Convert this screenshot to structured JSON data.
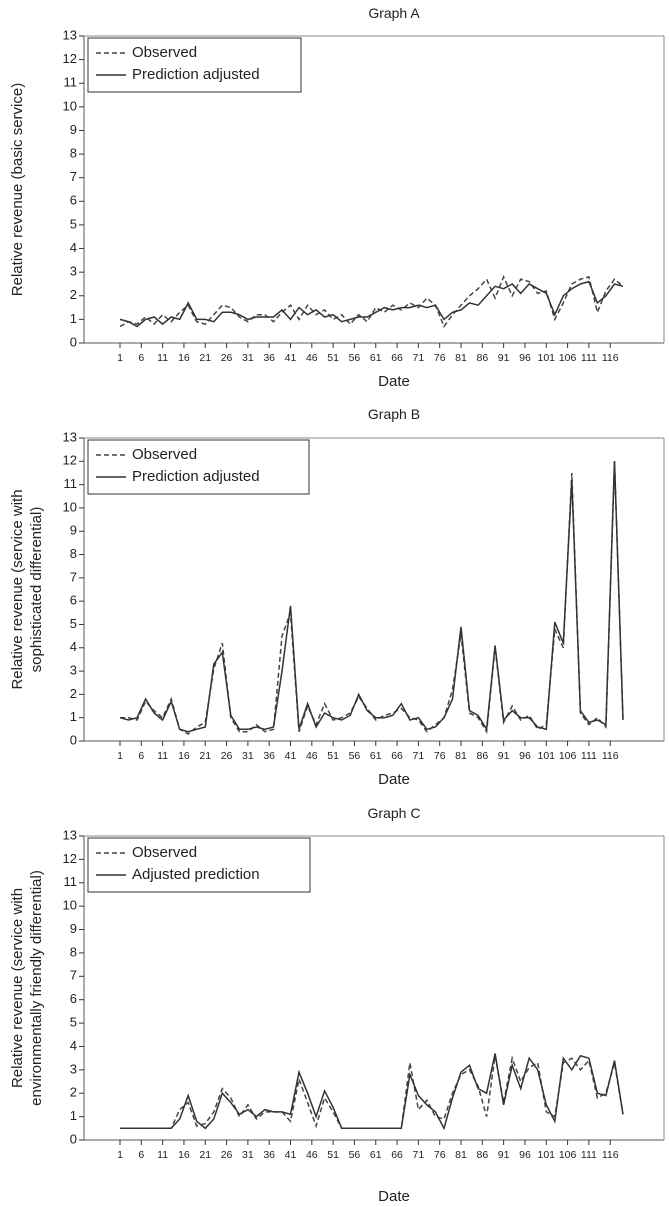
{
  "chart_data": [
    {
      "type": "line",
      "title": "Graph A",
      "xlabel": "Date",
      "ylabel": "Relative revenue (basic service)",
      "ylim": [
        0,
        13
      ],
      "yticks": [
        "0",
        "1",
        "2",
        "3",
        "4",
        "5",
        "6",
        "7",
        "8",
        "9",
        "10",
        "11",
        "12",
        "13"
      ],
      "xticks": [
        "1",
        "6",
        "11",
        "16",
        "21",
        "26",
        "31",
        "36",
        "41",
        "46",
        "51",
        "56",
        "61",
        "66",
        "71",
        "76",
        "81",
        "86",
        "91",
        "96",
        "101",
        "106",
        "111",
        "116"
      ],
      "legend_position": "top-left",
      "series": [
        {
          "name": "Observed",
          "style": "dashed",
          "x": [
            1,
            3,
            5,
            7,
            9,
            11,
            13,
            15,
            17,
            19,
            21,
            23,
            25,
            27,
            29,
            31,
            33,
            35,
            37,
            39,
            41,
            43,
            45,
            47,
            49,
            51,
            53,
            55,
            57,
            59,
            61,
            63,
            65,
            67,
            69,
            71,
            73,
            75,
            77,
            79,
            81,
            83,
            85,
            87,
            89,
            91,
            93,
            95,
            97,
            99,
            101,
            103,
            105,
            107,
            109,
            111,
            113,
            115,
            117,
            119
          ],
          "values": [
            0.7,
            0.9,
            0.8,
            1.1,
            0.8,
            1.2,
            0.9,
            1.3,
            1.6,
            0.9,
            0.8,
            1.2,
            1.6,
            1.5,
            1.1,
            0.9,
            1.2,
            1.2,
            0.9,
            1.3,
            1.6,
            1.0,
            1.6,
            1.2,
            1.4,
            1.0,
            1.2,
            0.8,
            1.2,
            0.9,
            1.5,
            1.3,
            1.6,
            1.4,
            1.7,
            1.5,
            1.9,
            1.6,
            0.7,
            1.2,
            1.6,
            2.0,
            2.3,
            2.7,
            1.9,
            2.8,
            2.0,
            2.7,
            2.6,
            2.1,
            2.2,
            1.0,
            1.7,
            2.5,
            2.7,
            2.8,
            1.3,
            2.2,
            2.7,
            2.4
          ]
        },
        {
          "name": "Prediction adjusted",
          "style": "solid",
          "x": [
            1,
            3,
            5,
            7,
            9,
            11,
            13,
            15,
            17,
            19,
            21,
            23,
            25,
            27,
            29,
            31,
            33,
            35,
            37,
            39,
            41,
            43,
            45,
            47,
            49,
            51,
            53,
            55,
            57,
            59,
            61,
            63,
            65,
            67,
            69,
            71,
            73,
            75,
            77,
            79,
            81,
            83,
            85,
            87,
            89,
            91,
            93,
            95,
            97,
            99,
            101,
            103,
            105,
            107,
            109,
            111,
            113,
            115,
            117,
            119
          ],
          "values": [
            1.0,
            0.9,
            0.7,
            1.0,
            1.1,
            0.8,
            1.1,
            1.0,
            1.7,
            1.0,
            1.0,
            0.9,
            1.3,
            1.3,
            1.2,
            1.0,
            1.1,
            1.1,
            1.1,
            1.4,
            1.0,
            1.5,
            1.2,
            1.4,
            1.1,
            1.2,
            0.9,
            1.0,
            1.1,
            1.1,
            1.3,
            1.5,
            1.4,
            1.5,
            1.5,
            1.6,
            1.5,
            1.6,
            1.0,
            1.3,
            1.4,
            1.7,
            1.6,
            2.0,
            2.4,
            2.3,
            2.5,
            2.1,
            2.5,
            2.3,
            2.1,
            1.2,
            2.0,
            2.3,
            2.5,
            2.6,
            1.7,
            2.0,
            2.5,
            2.4
          ]
        }
      ]
    },
    {
      "type": "line",
      "title": "Graph B",
      "xlabel": "Date",
      "ylabel": "Relative revenue (service with sophisticated differential)",
      "ylim": [
        0,
        13
      ],
      "yticks": [
        "0",
        "1",
        "2",
        "3",
        "4",
        "5",
        "6",
        "7",
        "8",
        "9",
        "10",
        "11",
        "12",
        "13"
      ],
      "xticks": [
        "1",
        "6",
        "11",
        "16",
        "21",
        "26",
        "31",
        "36",
        "41",
        "46",
        "51",
        "56",
        "61",
        "66",
        "71",
        "76",
        "81",
        "86",
        "91",
        "96",
        "101",
        "106",
        "111",
        "116"
      ],
      "legend_position": "top-left",
      "series": [
        {
          "name": "Observed",
          "style": "dashed",
          "x": [
            1,
            3,
            5,
            7,
            9,
            11,
            13,
            15,
            17,
            19,
            21,
            23,
            25,
            27,
            29,
            31,
            33,
            35,
            37,
            39,
            41,
            43,
            45,
            47,
            49,
            51,
            53,
            55,
            57,
            59,
            61,
            63,
            65,
            67,
            69,
            71,
            73,
            75,
            77,
            79,
            81,
            83,
            85,
            87,
            89,
            91,
            93,
            95,
            97,
            99,
            101,
            103,
            105,
            107,
            109,
            111,
            113,
            115,
            117,
            119
          ],
          "values": [
            1.0,
            1.0,
            0.9,
            1.7,
            1.3,
            1.0,
            1.8,
            0.5,
            0.3,
            0.6,
            0.8,
            3.1,
            4.2,
            1.0,
            0.4,
            0.4,
            0.7,
            0.4,
            0.5,
            4.5,
            5.5,
            0.4,
            1.5,
            0.7,
            1.6,
            0.9,
            1.0,
            1.2,
            1.9,
            1.4,
            0.9,
            1.1,
            1.2,
            1.4,
            1.0,
            0.9,
            0.4,
            0.7,
            1.0,
            2.2,
            4.6,
            1.2,
            1.0,
            0.4,
            4.0,
            0.8,
            1.5,
            0.9,
            1.1,
            0.5,
            0.7,
            4.8,
            4.0,
            11.5,
            1.2,
            0.7,
            1.0,
            0.6,
            12.0,
            0.9
          ]
        },
        {
          "name": "Prediction adjusted",
          "style": "solid",
          "x": [
            1,
            3,
            5,
            7,
            9,
            11,
            13,
            15,
            17,
            19,
            21,
            23,
            25,
            27,
            29,
            31,
            33,
            35,
            37,
            39,
            41,
            43,
            45,
            47,
            49,
            51,
            53,
            55,
            57,
            59,
            61,
            63,
            65,
            67,
            69,
            71,
            73,
            75,
            77,
            79,
            81,
            83,
            85,
            87,
            89,
            91,
            93,
            95,
            97,
            99,
            101,
            103,
            105,
            107,
            109,
            111,
            113,
            115,
            117,
            119
          ],
          "values": [
            1.0,
            0.9,
            1.0,
            1.8,
            1.2,
            0.9,
            1.7,
            0.5,
            0.4,
            0.5,
            0.6,
            3.3,
            3.8,
            1.1,
            0.5,
            0.5,
            0.6,
            0.5,
            0.6,
            3.0,
            5.8,
            0.5,
            1.6,
            0.6,
            1.2,
            1.0,
            0.9,
            1.1,
            2.0,
            1.3,
            1.0,
            1.0,
            1.1,
            1.6,
            0.9,
            1.0,
            0.5,
            0.6,
            1.0,
            1.8,
            4.9,
            1.3,
            1.1,
            0.5,
            4.1,
            0.9,
            1.3,
            1.0,
            1.0,
            0.6,
            0.5,
            5.1,
            4.2,
            11.2,
            1.3,
            0.8,
            0.9,
            0.7,
            12.0,
            0.9
          ]
        }
      ]
    },
    {
      "type": "line",
      "title": "Graph C",
      "xlabel": "Date",
      "ylabel": "Relative revenue (service with environmentally friendly differential)",
      "ylim": [
        0,
        13
      ],
      "yticks": [
        "0",
        "1",
        "2",
        "3",
        "4",
        "5",
        "6",
        "7",
        "8",
        "9",
        "10",
        "11",
        "12",
        "13"
      ],
      "xticks": [
        "1",
        "6",
        "11",
        "16",
        "21",
        "26",
        "31",
        "36",
        "41",
        "46",
        "51",
        "56",
        "61",
        "66",
        "71",
        "76",
        "81",
        "86",
        "91",
        "96",
        "101",
        "106",
        "111",
        "116"
      ],
      "legend_position": "top-left",
      "series": [
        {
          "name": "Observed",
          "style": "dashed",
          "x": [
            1,
            3,
            5,
            7,
            9,
            11,
            13,
            15,
            17,
            19,
            21,
            23,
            25,
            27,
            29,
            31,
            33,
            35,
            37,
            39,
            41,
            43,
            45,
            47,
            49,
            51,
            53,
            55,
            57,
            59,
            61,
            63,
            65,
            67,
            69,
            71,
            73,
            75,
            77,
            79,
            81,
            83,
            85,
            87,
            89,
            91,
            93,
            95,
            97,
            99,
            101,
            103,
            105,
            107,
            109,
            111,
            113,
            115,
            117,
            119
          ],
          "values": [
            0.5,
            0.5,
            0.5,
            0.5,
            0.5,
            0.5,
            0.5,
            1.3,
            1.6,
            0.6,
            0.7,
            1.2,
            2.2,
            1.8,
            1.0,
            1.5,
            0.9,
            1.2,
            1.2,
            1.2,
            0.8,
            2.6,
            1.6,
            0.6,
            1.8,
            1.2,
            0.5,
            0.5,
            0.5,
            0.5,
            0.5,
            0.5,
            0.5,
            0.5,
            3.3,
            1.3,
            1.7,
            1.0,
            0.9,
            2.0,
            2.8,
            3.0,
            2.3,
            1.0,
            3.6,
            1.6,
            3.5,
            2.5,
            3.1,
            3.3,
            1.2,
            1.0,
            3.3,
            3.5,
            3.0,
            3.4,
            1.8,
            2.0,
            3.3,
            1.1
          ]
        },
        {
          "name": "Adjusted prediction",
          "style": "solid",
          "x": [
            1,
            3,
            5,
            7,
            9,
            11,
            13,
            15,
            17,
            19,
            21,
            23,
            25,
            27,
            29,
            31,
            33,
            35,
            37,
            39,
            41,
            43,
            45,
            47,
            49,
            51,
            53,
            55,
            57,
            59,
            61,
            63,
            65,
            67,
            69,
            71,
            73,
            75,
            77,
            79,
            81,
            83,
            85,
            87,
            89,
            91,
            93,
            95,
            97,
            99,
            101,
            103,
            105,
            107,
            109,
            111,
            113,
            115,
            117,
            119
          ],
          "values": [
            0.5,
            0.5,
            0.5,
            0.5,
            0.5,
            0.5,
            0.5,
            0.9,
            1.9,
            0.8,
            0.5,
            0.9,
            2.0,
            1.6,
            1.1,
            1.3,
            1.0,
            1.3,
            1.2,
            1.2,
            1.1,
            2.9,
            2.0,
            1.0,
            2.1,
            1.4,
            0.5,
            0.5,
            0.5,
            0.5,
            0.5,
            0.5,
            0.5,
            0.5,
            2.8,
            1.9,
            1.5,
            1.2,
            0.5,
            1.8,
            2.9,
            3.2,
            2.2,
            2.0,
            3.7,
            1.5,
            3.2,
            2.2,
            3.5,
            3.0,
            1.5,
            0.8,
            3.5,
            3.0,
            3.6,
            3.5,
            2.0,
            1.9,
            3.4,
            1.1
          ]
        }
      ]
    }
  ]
}
